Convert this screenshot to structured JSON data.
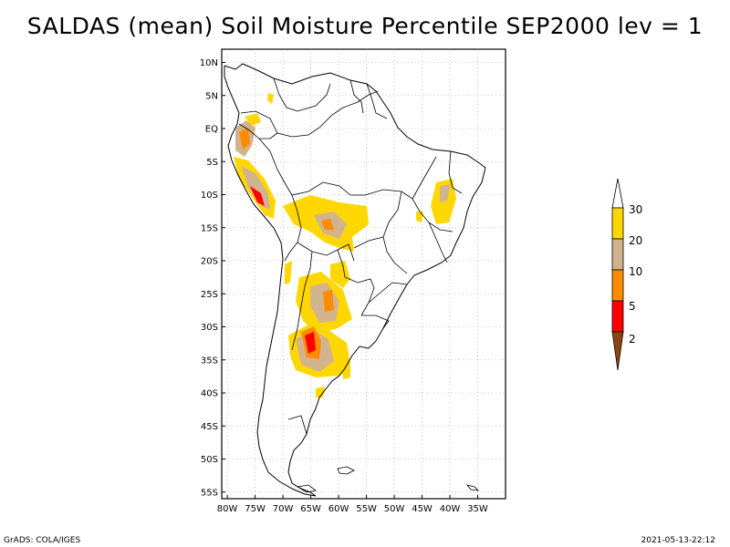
{
  "title": "SALDAS (mean) Soil Moisture Percentile SEP2000 lev = 1",
  "lat_labels": [
    "10N",
    "5N",
    "EQ",
    "5S",
    "10S",
    "15S",
    "20S",
    "25S",
    "30S",
    "35S",
    "40S",
    "45S",
    "50S",
    "55S"
  ],
  "lat_values": [
    10,
    5,
    0,
    -5,
    -10,
    -15,
    -20,
    -25,
    -30,
    -35,
    -40,
    -45,
    -50,
    -55
  ],
  "lon_labels": [
    "80W",
    "75W",
    "70W",
    "65W",
    "60W",
    "55W",
    "50W",
    "45W",
    "40W",
    "35W"
  ],
  "lon_values": [
    -80,
    -75,
    -70,
    -65,
    -60,
    -55,
    -50,
    -45,
    -40,
    -35
  ],
  "extent": {
    "lon_min": -81,
    "lon_max": -30,
    "lat_min": -56,
    "lat_max": 12
  },
  "colorbar": {
    "labels": [
      "2",
      "5",
      "10",
      "20",
      "30"
    ],
    "colors": [
      "#8b4513",
      "#ff0000",
      "#ff8c00",
      "#d2b48c",
      "#ffd700",
      "#ffffff"
    ]
  },
  "footer": {
    "left": "GrADS: COLA/IGES",
    "right": "2021-05-13-22:12"
  }
}
